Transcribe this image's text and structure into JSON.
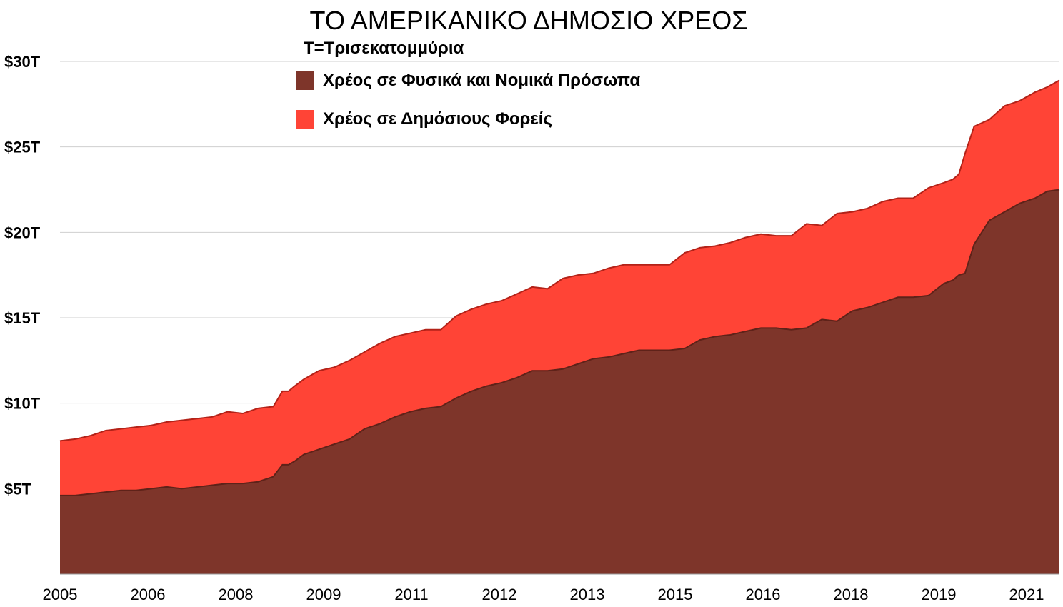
{
  "title": "ΤΟ ΑΜΕΡΙΚΑΝΙΚΟ ΔΗΜΟΣΙΟ ΧΡΕΟΣ",
  "subtitle": "T=Τρισεκατομμύρια",
  "colors": {
    "public": "#7e352a",
    "intragov": "#ff4436",
    "grid": "#cfcfcf"
  },
  "chart_data": {
    "type": "area",
    "stacked": true,
    "grid": true,
    "legend_placement": "top-center",
    "ylim": [
      0,
      30
    ],
    "y_ticks": [
      5,
      10,
      15,
      20,
      25,
      30
    ],
    "y_tick_labels": [
      "$5T",
      "$10T",
      "$15T",
      "$20T",
      "$25T",
      "$30T"
    ],
    "xlim": [
      2005.0,
      2021.4
    ],
    "x_tick_labels": [
      "2005",
      "2006",
      "2008",
      "2009",
      "2011",
      "2012",
      "2013",
      "2015",
      "2016",
      "2018",
      "2019",
      "2021"
    ],
    "x": [
      2005.0,
      2005.25,
      2005.5,
      2005.75,
      2006.0,
      2006.25,
      2006.5,
      2006.75,
      2007.0,
      2007.25,
      2007.5,
      2007.75,
      2008.0,
      2008.25,
      2008.5,
      2008.65,
      2008.75,
      2008.85,
      2009.0,
      2009.25,
      2009.5,
      2009.75,
      2010.0,
      2010.25,
      2010.5,
      2010.75,
      2011.0,
      2011.25,
      2011.5,
      2011.75,
      2012.0,
      2012.25,
      2012.5,
      2012.75,
      2013.0,
      2013.25,
      2013.5,
      2013.75,
      2014.0,
      2014.25,
      2014.5,
      2014.75,
      2015.0,
      2015.25,
      2015.5,
      2015.75,
      2016.0,
      2016.25,
      2016.5,
      2016.75,
      2017.0,
      2017.25,
      2017.5,
      2017.75,
      2018.0,
      2018.25,
      2018.5,
      2018.75,
      2019.0,
      2019.25,
      2019.5,
      2019.65,
      2019.75,
      2019.85,
      2020.0,
      2020.25,
      2020.5,
      2020.75,
      2021.0,
      2021.2,
      2021.4
    ],
    "series": [
      {
        "name": "Χρέος σε Φυσικά και Νομικά Πρόσωπα",
        "color": "#7e352a",
        "values": [
          4.6,
          4.6,
          4.7,
          4.8,
          4.9,
          4.9,
          5.0,
          5.1,
          5.0,
          5.1,
          5.2,
          5.3,
          5.3,
          5.4,
          5.7,
          6.4,
          6.4,
          6.6,
          7.0,
          7.3,
          7.6,
          7.9,
          8.5,
          8.8,
          9.2,
          9.5,
          9.7,
          9.8,
          10.3,
          10.7,
          11.0,
          11.2,
          11.5,
          11.9,
          11.9,
          12.0,
          12.3,
          12.6,
          12.7,
          12.9,
          13.1,
          13.1,
          13.1,
          13.2,
          13.7,
          13.9,
          14.0,
          14.2,
          14.4,
          14.4,
          14.3,
          14.4,
          14.9,
          14.8,
          15.4,
          15.6,
          15.9,
          16.2,
          16.2,
          16.3,
          17.0,
          17.2,
          17.5,
          17.6,
          19.3,
          20.7,
          21.2,
          21.7,
          22.0,
          22.4,
          22.5
        ]
      },
      {
        "name": "Χρέος σε Δημόσιους Φορείς",
        "color": "#ff4436",
        "values": [
          3.2,
          3.3,
          3.4,
          3.6,
          3.6,
          3.7,
          3.7,
          3.8,
          4.0,
          4.0,
          4.0,
          4.2,
          4.1,
          4.3,
          4.1,
          4.3,
          4.3,
          4.4,
          4.4,
          4.6,
          4.5,
          4.6,
          4.5,
          4.7,
          4.7,
          4.6,
          4.6,
          4.5,
          4.8,
          4.8,
          4.8,
          4.8,
          4.9,
          4.9,
          4.8,
          5.3,
          5.2,
          5.0,
          5.2,
          5.2,
          5.0,
          5.0,
          5.0,
          5.6,
          5.4,
          5.3,
          5.4,
          5.5,
          5.5,
          5.4,
          5.5,
          6.1,
          5.5,
          6.3,
          5.8,
          5.8,
          5.9,
          5.8,
          5.8,
          6.3,
          5.9,
          5.9,
          5.9,
          7.0,
          6.9,
          5.9,
          6.2,
          6.0,
          6.2,
          6.1,
          6.4
        ]
      }
    ]
  }
}
